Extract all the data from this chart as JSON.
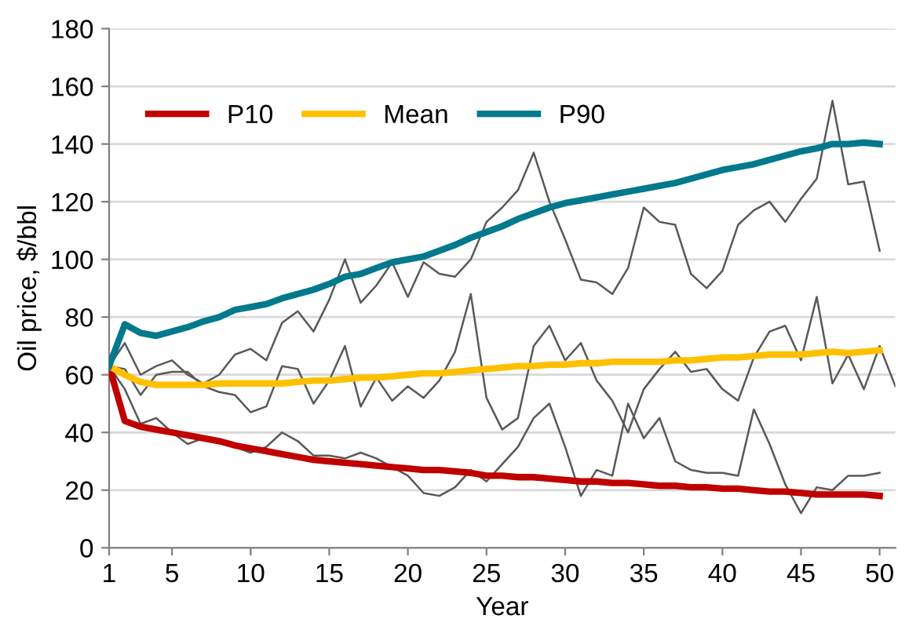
{
  "chart_data": {
    "type": "line",
    "xlabel": "Year",
    "ylabel": "Oil price, $/bbl",
    "xlim": [
      1,
      51
    ],
    "xticks": [
      1,
      5,
      10,
      15,
      20,
      25,
      30,
      35,
      40,
      45,
      50
    ],
    "ylim": [
      0,
      180
    ],
    "yticks": [
      0,
      20,
      40,
      60,
      80,
      100,
      120,
      140,
      160,
      180
    ],
    "grid": "y",
    "legend": "top left",
    "marker": "none",
    "line_style": "solid",
    "series": [
      {
        "color": "#595959",
        "x": [
          1,
          2,
          3,
          4,
          5,
          6,
          7,
          8,
          9,
          10,
          11,
          12,
          13,
          14,
          15,
          16,
          17,
          18,
          19,
          20,
          21,
          22,
          23,
          24,
          25,
          26,
          27,
          28,
          29,
          30,
          31,
          32,
          33,
          34,
          35,
          36,
          37,
          38,
          39,
          40,
          41,
          42,
          43,
          44,
          45,
          46,
          47,
          48,
          49,
          50
        ],
        "values": [
          63,
          71,
          60,
          63,
          65,
          60,
          57,
          60,
          67,
          69,
          65,
          78,
          82,
          75,
          86,
          100,
          85,
          91,
          99,
          87,
          99,
          95,
          94,
          100,
          113,
          118,
          124,
          137,
          120,
          107,
          93,
          92,
          88,
          97,
          118,
          113,
          112,
          95,
          90,
          96,
          112,
          117,
          120,
          113,
          121,
          128,
          155,
          126,
          127,
          103
        ]
      },
      {
        "color": "#595959",
        "x": [
          1,
          2,
          3,
          4,
          5,
          6,
          7,
          8,
          9,
          10,
          11,
          12,
          13,
          14,
          15,
          16,
          17,
          18,
          19,
          20,
          21,
          22,
          23,
          24,
          25,
          26,
          27,
          28,
          29,
          30,
          31,
          32,
          33,
          34,
          35,
          36,
          37,
          38,
          39,
          40,
          41,
          42,
          43,
          44,
          45,
          46,
          47,
          48,
          49,
          50,
          51
        ],
        "values": [
          63,
          62,
          53,
          60,
          61,
          61,
          56,
          54,
          53,
          47,
          49,
          63,
          62,
          50,
          58,
          70,
          49,
          59,
          51,
          56,
          52,
          58,
          68,
          88,
          52,
          41,
          45,
          70,
          77,
          65,
          71,
          58,
          51,
          40,
          55,
          62,
          68,
          61,
          62,
          55,
          51,
          66,
          75,
          77,
          65,
          87,
          57,
          67,
          55,
          70,
          56
        ]
      },
      {
        "color": "#595959",
        "x": [
          1,
          2,
          3,
          4,
          5,
          6,
          7,
          8,
          9,
          10,
          11,
          12,
          13,
          14,
          15,
          16,
          17,
          18,
          19,
          20,
          21,
          22,
          23,
          24,
          25,
          26,
          27,
          28,
          29,
          30,
          31,
          32,
          33,
          34,
          35,
          36,
          37,
          38,
          39,
          40,
          41,
          42,
          43,
          44,
          45,
          46,
          47,
          48,
          49,
          50
        ],
        "values": [
          63,
          55,
          43,
          45,
          40,
          36,
          38,
          null,
          35,
          33,
          35,
          40,
          37,
          32,
          32,
          31,
          33,
          31,
          28,
          25,
          19,
          18,
          21,
          27,
          23,
          29,
          35,
          45,
          50,
          35,
          18,
          27,
          25,
          50,
          38,
          45,
          30,
          27,
          26,
          26,
          25,
          48,
          36,
          22,
          12,
          21,
          20,
          25,
          25,
          26
        ]
      },
      {
        "name": "P10",
        "color": "#c00000",
        "x": [
          1,
          2,
          3,
          4,
          5,
          6,
          7,
          8,
          9,
          10,
          11,
          12,
          13,
          14,
          15,
          16,
          17,
          18,
          19,
          20,
          21,
          22,
          23,
          24,
          25,
          26,
          27,
          28,
          29,
          30,
          31,
          32,
          33,
          34,
          35,
          36,
          37,
          38,
          39,
          40,
          41,
          42,
          43,
          44,
          45,
          46,
          47,
          48,
          49,
          50
        ],
        "values": [
          63,
          44,
          42,
          41,
          40,
          39,
          38,
          37,
          35.5,
          34.5,
          33.5,
          32.5,
          31.5,
          30.5,
          30,
          29.5,
          29,
          28.5,
          28,
          27.5,
          27,
          27,
          26.5,
          26,
          25,
          25,
          24.5,
          24.5,
          24,
          23.5,
          23,
          23,
          22.5,
          22.5,
          22,
          21.5,
          21.5,
          21,
          21,
          20.5,
          20.5,
          20,
          19.5,
          19.5,
          19,
          18.5,
          18.5,
          18.5,
          18.5,
          18
        ]
      },
      {
        "name": "Mean",
        "color": "#ffc000",
        "x": [
          1,
          2,
          3,
          4,
          5,
          6,
          7,
          8,
          9,
          10,
          11,
          12,
          13,
          14,
          15,
          16,
          17,
          18,
          19,
          20,
          21,
          22,
          23,
          24,
          25,
          26,
          27,
          28,
          29,
          30,
          31,
          32,
          33,
          34,
          35,
          36,
          37,
          38,
          39,
          40,
          41,
          42,
          43,
          44,
          45,
          46,
          47,
          48,
          49,
          50
        ],
        "values": [
          63,
          60,
          57.5,
          56.5,
          56.5,
          56.5,
          56.5,
          57,
          57,
          57,
          57,
          57,
          57.5,
          58,
          58,
          58.5,
          59,
          59,
          59.5,
          60,
          60.5,
          60.5,
          61,
          61.5,
          62,
          62.5,
          63,
          63,
          63.5,
          63.5,
          64,
          64,
          64.5,
          64.5,
          64.5,
          64.5,
          65,
          65,
          65.5,
          66,
          66,
          66.5,
          67,
          67,
          67,
          67.5,
          68,
          67.5,
          68,
          68.5
        ]
      },
      {
        "name": "P90",
        "color": "#00798c",
        "x": [
          1,
          2,
          3,
          4,
          5,
          6,
          7,
          8,
          9,
          10,
          11,
          12,
          13,
          14,
          15,
          16,
          17,
          18,
          19,
          20,
          21,
          22,
          23,
          24,
          25,
          26,
          27,
          28,
          29,
          30,
          31,
          32,
          33,
          34,
          35,
          36,
          37,
          38,
          39,
          40,
          41,
          42,
          43,
          44,
          45,
          46,
          47,
          48,
          49,
          50
        ],
        "values": [
          63,
          77.5,
          74.5,
          73.5,
          75,
          76.5,
          78.5,
          80,
          82.5,
          83.5,
          84.5,
          86.5,
          88,
          89.5,
          91.5,
          94,
          95,
          97,
          99,
          100,
          101,
          103,
          105,
          107.5,
          109.5,
          111.5,
          114,
          116,
          118,
          119.5,
          120.5,
          121.5,
          122.5,
          123.5,
          124.5,
          125.5,
          126.5,
          128,
          129.5,
          131,
          132,
          133,
          134.5,
          136,
          137.5,
          138.5,
          140,
          140,
          140.5,
          140
        ]
      }
    ]
  }
}
